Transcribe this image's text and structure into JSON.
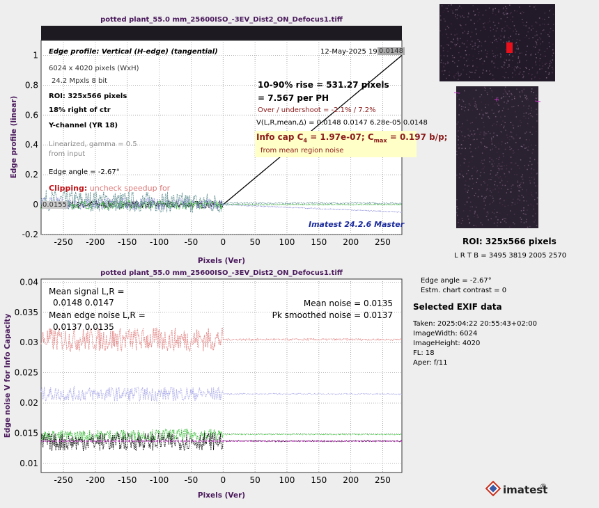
{
  "top_chart": {
    "title": "potted plant_55.0 mm_25600ISO_-3EV_Dist2_ON_Defocus1.tiff",
    "xlabel": "Pixels (Ver)",
    "ylabel": "Edge profile (linear)",
    "edge_profile_title": "Edge profile: Vertical (H-edge) (tangential)",
    "date": "12-May-2025 19:00:48",
    "image_size": "6024 x 4020 pixels (WxH)",
    "mpxls": "24.2 Mpxls   8 bit",
    "roi": "ROI:  325x566 pixels",
    "position": "18% right of ctr",
    "channel": "Y-channel  (YR 18)",
    "linearized": "Linearized, gamma = 0.5",
    "from_input": "from input",
    "edge_angle": "Edge angle = -2.67°",
    "clipping_label": "Clipping:",
    "clipping_text": "uncheck speedup for",
    "left_level": "0.0155",
    "right_level": "0.0148",
    "rise": "10-90% rise = 531.27 pixels",
    "per_ph": "=  7.567 per PH",
    "overshoot": "Over / undershoot = -2.1% /  7.2%",
    "vlr": "V(L,R,mean,Δ) = 0.0148  0.0147  6.28e-05  0.0148",
    "info_cap_prefix": "Info cap C",
    "info_cap_sub": "4",
    "info_cap_value": " = 1.97e-07;  C",
    "cmax_sub": "max",
    "cmax_value": " = 0.197 b/p;",
    "info_from": "from mean region noise",
    "version": "Imatest 24.2.6 Master"
  },
  "bottom_chart": {
    "title": "potted plant_55.0 mm_25600ISO_-3EV_Dist2_ON_Defocus1.tiff",
    "xlabel": "Pixels (Ver)",
    "ylabel": "Edge noise V for Info Capacity",
    "mean_signal_label": "Mean signal L,R =",
    "mean_signal_values": "0.0148  0.0147",
    "mean_edge_noise_label": "Mean edge noise L,R =",
    "mean_edge_noise_values": "0.0137  0.0135",
    "mean_noise": "Mean noise = 0.0135",
    "pk_smoothed_noise": "Pk smoothed noise = 0.0137"
  },
  "side_panel": {
    "roi_title": "ROI:  325x566 pixels",
    "roi_coords": "L R  T B = 3495 3819  2005 2570",
    "edge_angle": "Edge angle = -2.67°",
    "contrast": "Estm. chart contrast = 0",
    "exif_title": "Selected EXIF data",
    "exif": [
      "Taken: 2025:04:22 20:55:43+02:00",
      "ImageWidth:  6024",
      "ImageHeight:  4020",
      "FL:    18",
      "Aper:  f/11"
    ],
    "logo_text": "imatest",
    "logo_mark": "®"
  },
  "chart_data": [
    {
      "type": "line",
      "title": "potted plant_55.0 mm_25600ISO_-3EV_Dist2_ON_Defocus1.tiff",
      "xlabel": "Pixels (Ver)",
      "ylabel": "Edge profile (linear)",
      "xlim": [
        -285,
        280
      ],
      "ylim": [
        -0.2,
        1.1
      ],
      "xticks": [
        -250,
        -200,
        -150,
        -100,
        -50,
        0,
        50,
        100,
        150,
        200,
        250
      ],
      "yticks": [
        -0.2,
        0,
        0.2,
        0.4,
        0.6,
        0.8,
        1
      ],
      "grid": true,
      "series": [
        {
          "values_x": [
            -285,
            0,
            280
          ],
          "values_y": [
            0,
            0,
            1
          ],
          "color": "#000000",
          "style": "solid"
        },
        {
          "values_x": [
            -285,
            0,
            280
          ],
          "values_y": [
            0.03,
            0.01,
            0.01
          ],
          "color": "#5a8a8c",
          "style": "noisy",
          "amplitude": 0.07
        },
        {
          "values_x": [
            -285,
            0,
            280
          ],
          "values_y": [
            0,
            0,
            0
          ],
          "color": "#2db82d",
          "style": "noisy",
          "amplitude": 0.03
        },
        {
          "values_x": [
            -285,
            0,
            280
          ],
          "values_y": [
            0.01,
            0,
            -0.05
          ],
          "color": "#8c8cd8",
          "style": "noisy",
          "amplitude": 0.04
        }
      ]
    },
    {
      "type": "line",
      "title": "potted plant_55.0 mm_25600ISO_-3EV_Dist2_ON_Defocus1.tiff",
      "xlabel": "Pixels (Ver)",
      "ylabel": "Edge noise V for Info Capacity",
      "xlim": [
        -285,
        280
      ],
      "ylim": [
        0.0085,
        0.0405
      ],
      "xticks": [
        -250,
        -200,
        -150,
        -100,
        -50,
        0,
        50,
        100,
        150,
        200,
        250
      ],
      "yticks": [
        0.01,
        0.015,
        0.02,
        0.025,
        0.03,
        0.035,
        0.04
      ],
      "grid": true,
      "series": [
        {
          "values_x": [
            -285,
            0,
            0,
            280
          ],
          "values_y": [
            0.0305,
            0.0305,
            0.0305,
            0.0305
          ],
          "color": "#e07b7b",
          "style": "noisy",
          "amplitude": 0.002
        },
        {
          "values_x": [
            -285,
            0,
            0,
            280
          ],
          "values_y": [
            0.0215,
            0.0215,
            0.0215,
            0.0215
          ],
          "color": "#a8a8e8",
          "style": "noisy",
          "amplitude": 0.0012
        },
        {
          "values_x": [
            -285,
            0,
            280
          ],
          "values_y": [
            0.0145,
            0.0148,
            0.0148
          ],
          "color": "#2db82d",
          "style": "noisy",
          "amplitude": 0.001
        },
        {
          "values_x": [
            -285,
            0,
            280
          ],
          "values_y": [
            0.0135,
            0.0137,
            0.0137
          ],
          "color": "#000000",
          "style": "noisy",
          "amplitude": 0.0015
        },
        {
          "values_x": [
            -285,
            280
          ],
          "values_y": [
            0.0137,
            0.0137
          ],
          "color": "#c837c8",
          "style": "dashed"
        }
      ]
    }
  ]
}
